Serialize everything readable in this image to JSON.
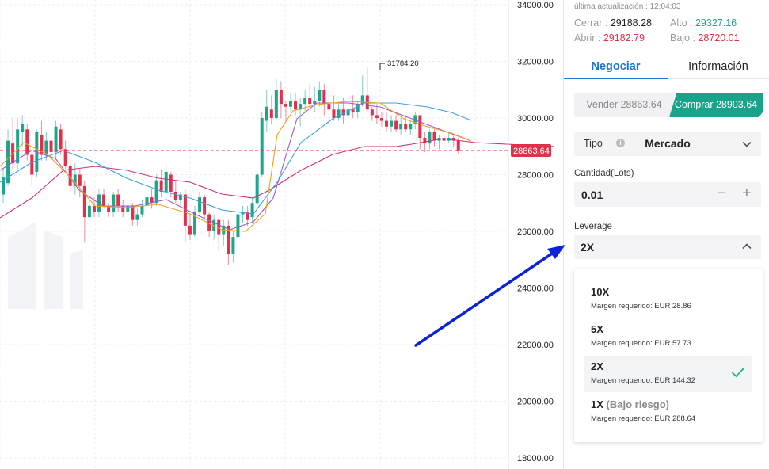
{
  "chart": {
    "y_axis_labels": [
      "34000.00",
      "32000.00",
      "30000.00",
      "28000.00",
      "26000.00",
      "24000.00",
      "22000.00",
      "20000.00",
      "18000.00"
    ],
    "current_price_label": "28863.64",
    "high_marker_label": "31784.20",
    "colors": {
      "up": "#1fa58a",
      "down": "#e0314b",
      "ma_fast": "#f0a020",
      "ma_mid": "#9b59d0",
      "ma_slow_blue": "#3aa0e0",
      "ma_long": "#d0307a",
      "arrow": "#0b23d6"
    }
  },
  "panel": {
    "last_update_label": "última actualización",
    "last_update_time": "12:04:03",
    "close_label": "Cerrar",
    "close_value": "29188.28",
    "high_label": "Alto",
    "high_value": "29327.16",
    "open_label": "Abrir",
    "open_value": "29182.79",
    "low_label": "Bajo",
    "low_value": "28720.01",
    "tabs": [
      {
        "label": "Negociar"
      },
      {
        "label": "Información"
      }
    ],
    "sell_label": "Vender 28863.64",
    "buy_label": "Comprar 28903.64",
    "type_label": "Tipo",
    "type_value": "Mercado",
    "quantity_label": "Cantidad(Lots)",
    "quantity_value": "0.01",
    "minus_symbol": "−",
    "plus_symbol": "+",
    "leverage_label": "Leverage",
    "leverage_value": "2X",
    "leverage_options": [
      {
        "title": "10X",
        "note": "",
        "margin_label": "Margen requerido:",
        "margin_value": "EUR 28.86"
      },
      {
        "title": "5X",
        "note": "",
        "margin_label": "Margen requerido:",
        "margin_value": "EUR 57.73"
      },
      {
        "title": "2X",
        "note": "",
        "margin_label": "Margen requerido:",
        "margin_value": "EUR 144.32"
      },
      {
        "title": "1X",
        "note": "(Bajo riesgo)",
        "margin_label": "Margen requerido:",
        "margin_value": "EUR 288.64"
      }
    ]
  }
}
